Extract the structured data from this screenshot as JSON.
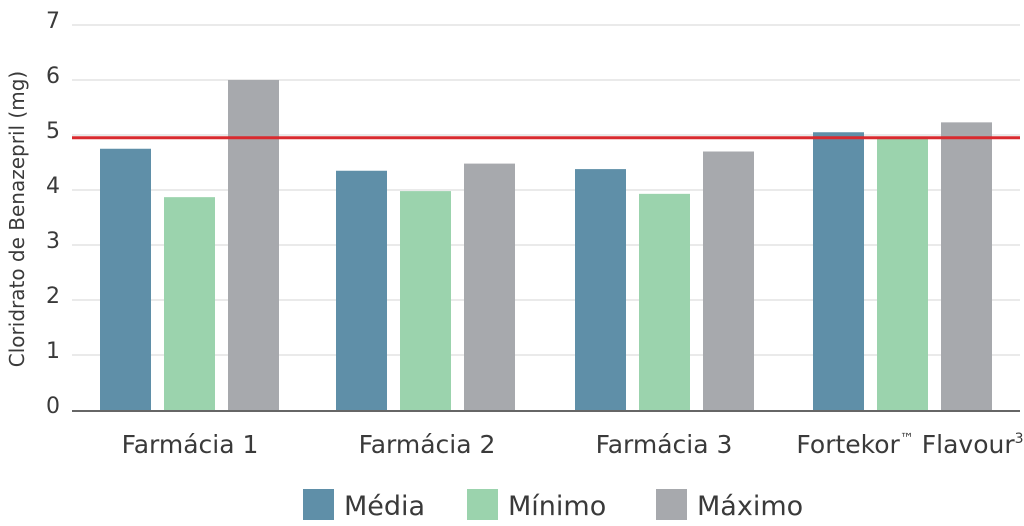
{
  "chart_data": {
    "type": "bar",
    "ylabel": "Cloridrato de Benazepril (mg)",
    "ylim": [
      0,
      7
    ],
    "yticks": [
      "0",
      "1",
      "2",
      "3",
      "4",
      "5",
      "6",
      "7"
    ],
    "grid": true,
    "categories": [
      {
        "label": "Farmácia 1"
      },
      {
        "label": "Farmácia 2"
      },
      {
        "label": "Farmácia 3"
      },
      {
        "label": "Fortekor",
        "tm": "™",
        "label2": " Flavour",
        "sup": "3"
      }
    ],
    "series": [
      {
        "name": "Média",
        "color": "#5f8fa8",
        "values": [
          4.75,
          4.35,
          4.38,
          5.05
        ]
      },
      {
        "name": "Mínimo",
        "color": "#9bd3ad",
        "values": [
          3.87,
          3.98,
          3.93,
          4.95
        ]
      },
      {
        "name": "Máximo",
        "color": "#a7a9ad",
        "values": [
          6.0,
          4.48,
          4.7,
          5.23
        ]
      }
    ],
    "reference_line": {
      "value": 4.95,
      "color": "#d92a2f"
    },
    "legend_position": "bottom"
  }
}
